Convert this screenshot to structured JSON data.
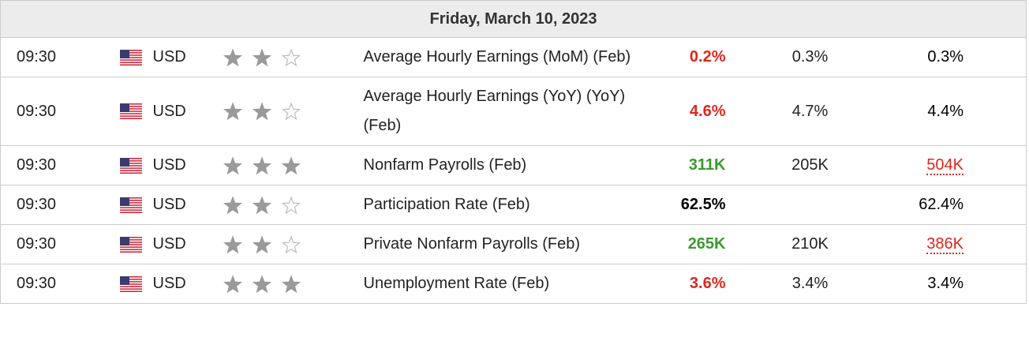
{
  "header": {
    "title": "Friday, March 10, 2023"
  },
  "rows": [
    {
      "time": "09:30",
      "currency": "USD",
      "importance": 2,
      "event": "Average Hourly Earnings (MoM) (Feb)",
      "actual": "0.2%",
      "actual_color": "#e0261b",
      "forecast": "0.3%",
      "previous": "0.3%",
      "previous_color": "#000000",
      "previous_revised": false
    },
    {
      "time": "09:30",
      "currency": "USD",
      "importance": 2,
      "event": "Average Hourly Earnings (YoY) (YoY) (Feb)",
      "actual": "4.6%",
      "actual_color": "#e0261b",
      "forecast": "4.7%",
      "previous": "4.4%",
      "previous_color": "#000000",
      "previous_revised": false
    },
    {
      "time": "09:30",
      "currency": "USD",
      "importance": 3,
      "event": "Nonfarm Payrolls (Feb)",
      "actual": "311K",
      "actual_color": "#3a9a2f",
      "forecast": "205K",
      "previous": "504K",
      "previous_color": "#e0261b",
      "previous_revised": true
    },
    {
      "time": "09:30",
      "currency": "USD",
      "importance": 2,
      "event": "Participation Rate (Feb)",
      "actual": "62.5%",
      "actual_color": "#000000",
      "forecast": null,
      "previous": "62.4%",
      "previous_color": "#000000",
      "previous_revised": false
    },
    {
      "time": "09:30",
      "currency": "USD",
      "importance": 2,
      "event": "Private Nonfarm Payrolls (Feb)",
      "actual": "265K",
      "actual_color": "#3a9a2f",
      "forecast": "210K",
      "previous": "386K",
      "previous_color": "#e0261b",
      "previous_revised": true
    },
    {
      "time": "09:30",
      "currency": "USD",
      "importance": 3,
      "event": "Unemployment Rate (Feb)",
      "actual": "3.6%",
      "actual_color": "#e0261b",
      "forecast": "3.4%",
      "previous": "3.4%",
      "previous_color": "#000000",
      "previous_revised": false
    }
  ]
}
